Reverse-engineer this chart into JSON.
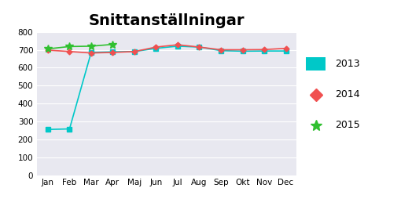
{
  "title": "Snittanställningar",
  "months": [
    "Jan",
    "Feb",
    "Mar",
    "Apr",
    "Maj",
    "Jun",
    "Jul",
    "Aug",
    "Sep",
    "Okt",
    "Nov",
    "Dec"
  ],
  "series_2013": [
    255,
    258,
    685,
    688,
    690,
    708,
    720,
    715,
    695,
    692,
    693,
    693
  ],
  "series_2014": [
    698,
    690,
    682,
    685,
    690,
    715,
    728,
    715,
    700,
    700,
    701,
    708
  ],
  "series_2015": [
    705,
    718,
    720,
    730,
    null,
    null,
    null,
    null,
    null,
    null,
    null,
    null
  ],
  "color_2013": "#00C8C8",
  "color_2014": "#F05050",
  "color_2015": "#30C030",
  "ylim": [
    0,
    800
  ],
  "yticks": [
    0,
    100,
    200,
    300,
    400,
    500,
    600,
    700,
    800
  ],
  "bg_color": "#E8E8F0",
  "grid_color": "#FFFFFF",
  "title_fontsize": 14,
  "tick_fontsize": 7.5
}
